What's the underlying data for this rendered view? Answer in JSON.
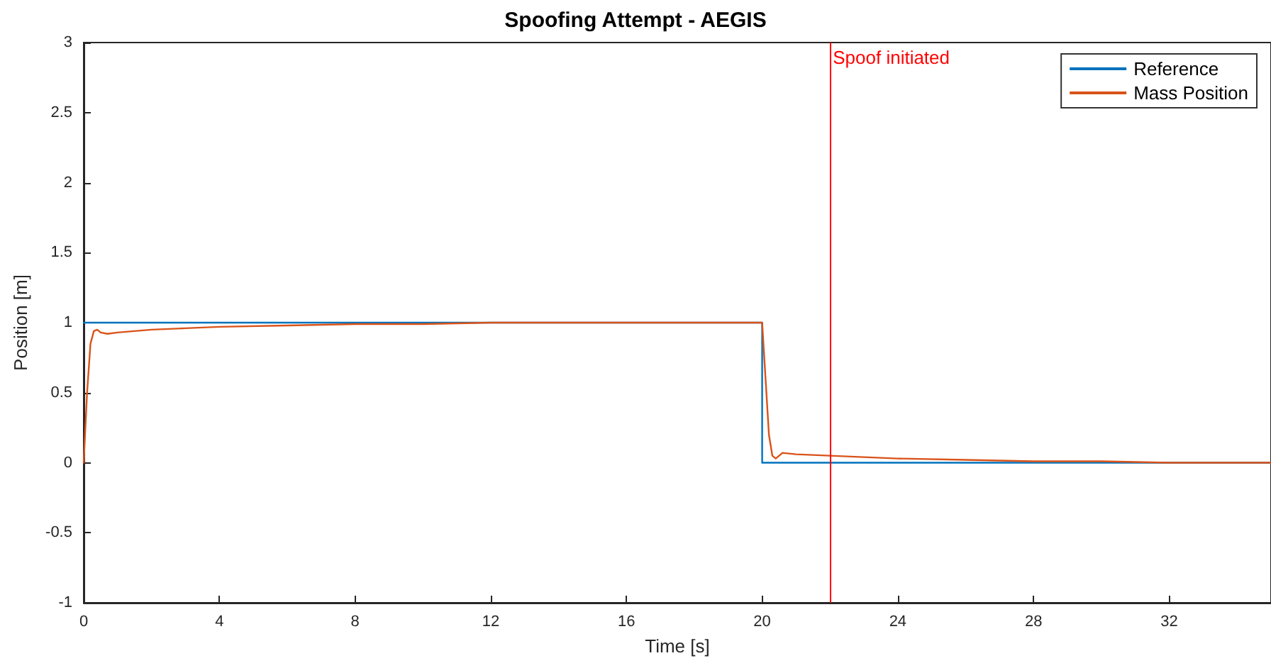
{
  "chart_data": {
    "type": "line",
    "title": "Spoofing Attempt - AEGIS",
    "xlabel": "Time [s]",
    "ylabel": "Position [m]",
    "xlim": [
      0,
      35
    ],
    "xticks": [
      0,
      4,
      8,
      12,
      16,
      20,
      24,
      28,
      32
    ],
    "ylim": [
      -1,
      3
    ],
    "yticks": [
      -1,
      -0.5,
      0,
      0.5,
      1,
      1.5,
      2,
      2.5,
      3
    ],
    "grid": false,
    "legend": "top right",
    "marker": "none",
    "line_style": "solid",
    "series": [
      {
        "name": "Reference",
        "color": "#0072bd",
        "x": [
          0,
          20,
          20,
          35
        ],
        "values": [
          1,
          1,
          0,
          0
        ]
      },
      {
        "name": "Mass Position",
        "color": "#d95319",
        "x": [
          0,
          0.1,
          0.2,
          0.3,
          0.4,
          0.5,
          0.7,
          1,
          2,
          3,
          4,
          6,
          8,
          10,
          12,
          14,
          16,
          18,
          20,
          20.1,
          20.2,
          20.3,
          20.4,
          20.6,
          21,
          22,
          23,
          24,
          26,
          28,
          30,
          32,
          35
        ],
        "values": [
          0,
          0.5,
          0.85,
          0.94,
          0.95,
          0.93,
          0.92,
          0.93,
          0.95,
          0.96,
          0.97,
          0.98,
          0.99,
          0.99,
          1,
          1,
          1,
          1,
          1,
          0.6,
          0.2,
          0.05,
          0.03,
          0.07,
          0.06,
          0.05,
          0.04,
          0.03,
          0.02,
          0.01,
          0.01,
          0,
          0
        ]
      }
    ],
    "ref_lines": [
      {
        "axis": "x",
        "value": 22,
        "label": "Spoof initiated",
        "color": "#ff0000"
      }
    ]
  }
}
